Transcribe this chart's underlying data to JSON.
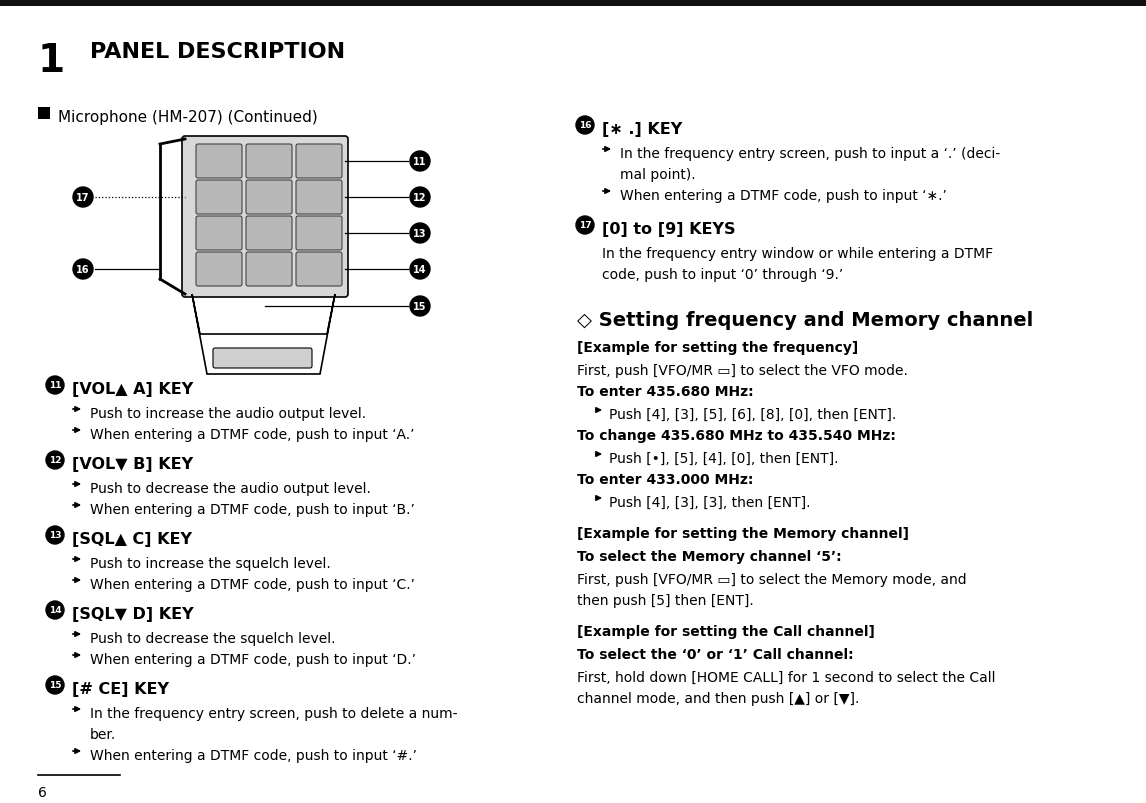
{
  "title_number": "1",
  "title_text": "PANEL DESCRIPTION",
  "section_header": "Microphone (HM-207) (Continued)",
  "bg_color": "#ffffff",
  "text_color": "#000000",
  "page_number": "6",
  "items_left": [
    {
      "num": "11",
      "label": "[VOL▲ A] KEY",
      "bullets": [
        "Push to increase the audio output level.",
        "When entering a DTMF code, push to input ‘A.’"
      ]
    },
    {
      "num": "12",
      "label": "[VOL▼ B] KEY",
      "bullets": [
        "Push to decrease the audio output level.",
        "When entering a DTMF code, push to input ‘B.’"
      ]
    },
    {
      "num": "13",
      "label": "[SQL▲ C] KEY",
      "bullets": [
        "Push to increase the squelch level.",
        "When entering a DTMF code, push to input ‘C.’"
      ]
    },
    {
      "num": "14",
      "label": "[SQL▼ D] KEY",
      "bullets": [
        "Push to decrease the squelch level.",
        "When entering a DTMF code, push to input ‘D.’"
      ]
    },
    {
      "num": "15",
      "label": "[# CE] KEY",
      "bullets": [
        [
          "In the frequency entry screen, push to delete a num-",
          "ber."
        ],
        [
          "When entering a DTMF code, push to input ‘#.’"
        ]
      ]
    }
  ],
  "items_right": [
    {
      "num": "16",
      "label": "[∗ .] KEY",
      "bullets": [
        [
          "In the frequency entry screen, push to input a ‘.’ (deci-",
          "mal point)."
        ],
        [
          "When entering a DTMF code, push to input ‘∗.’"
        ]
      ]
    },
    {
      "num": "17",
      "label": "[0] to [9] KEYS",
      "body": [
        "In the frequency entry window or while entering a DTMF",
        "code, push to input ‘0’ through ‘9.’"
      ]
    }
  ],
  "diamond_section_title": "◇ Setting frequency and Memory channel",
  "freq_examples": [
    {
      "bold_header": "[Example for setting the frequency]",
      "lines": [
        "First, push [VFO/MR ▭] to select the VFO mode."
      ],
      "extra_gap": false
    },
    {
      "bold_header": "To enter 435.680 MHz:",
      "bullet": "Push [4], [3], [5], [6], [8], [0], then [ENT].",
      "extra_gap": false
    },
    {
      "bold_header": "To change 435.680 MHz to 435.540 MHz:",
      "bullet": "Push [•], [5], [4], [0], then [ENT].",
      "extra_gap": false
    },
    {
      "bold_header": "To enter 433.000 MHz:",
      "bullet": "Push [4], [3], [3], then [ENT].",
      "extra_gap": true
    },
    {
      "bold_header": "[Example for setting the Memory channel]",
      "bold_sub": "To select the Memory channel ‘5’:",
      "lines": [
        "First, push [VFO/MR ▭] to select the Memory mode, and",
        "then push [5] then [ENT]."
      ],
      "extra_gap": true
    },
    {
      "bold_header": "[Example for setting the Call channel]",
      "bold_sub": "To select the ‘0’ or ‘1’ Call channel:",
      "lines": [
        "First, hold down [HOME CALL] for 1 second to select the Call",
        "channel mode, and then push [▲] or [▼]."
      ],
      "extra_gap": false
    }
  ]
}
